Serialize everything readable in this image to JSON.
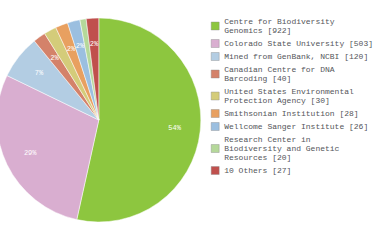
{
  "chart_data": {
    "type": "pie",
    "categories": [
      "Centre for Biodiversity\nGenomics [922]",
      "Colorado State University [503]",
      "Mined from GenBank, NCBI [120]",
      "Canadian Centre for DNA\nBarcoding [40]",
      "United States Environmental\nProtection Agency [30]",
      "Smithsonian Institution [28]",
      "Wellcome Sanger Institute [26]",
      "Research Center in\nBiodiversity and Genetic\nResources [20]",
      "10 Others [27]"
    ],
    "values": [
      54,
      29,
      7,
      2,
      2,
      2,
      2,
      1,
      2
    ],
    "value_labels": [
      "54%",
      "29%",
      "7%",
      "2%",
      "2%",
      "2%",
      "2%",
      null,
      "2%"
    ],
    "colors": [
      "#8dc63f",
      "#d9aed0",
      "#b3cde3",
      "#d4826a",
      "#d4cc7a",
      "#e8a060",
      "#9bbfe0",
      "#b5d89a",
      "#c0504d"
    ],
    "data_labels": true,
    "legend": "right"
  }
}
